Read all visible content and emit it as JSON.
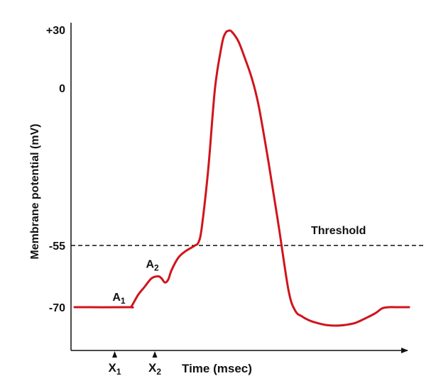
{
  "chart_data": {
    "type": "line",
    "title": "",
    "xlabel": "Time (msec)",
    "ylabel": "Membrane potential (mV)",
    "yticks": [
      "+30",
      "0",
      "-55",
      "-70"
    ],
    "ytick_values": [
      30,
      0,
      -55,
      -70
    ],
    "ylim": [
      -80,
      33
    ],
    "xlim": [
      0,
      100
    ],
    "threshold": {
      "label": "Threshold",
      "value": -55,
      "style": "dashed"
    },
    "stimuli": [
      {
        "label": "X",
        "sub": "1",
        "x": 12
      },
      {
        "label": "X",
        "sub": "2",
        "x": 24
      }
    ],
    "annotations": [
      {
        "label": "A",
        "sub": "1",
        "x": 16,
        "y": -70
      },
      {
        "label": "A",
        "sub": "2",
        "x": 26,
        "y": -62
      }
    ],
    "series": [
      {
        "color": "#d0141c",
        "x": [
          0,
          16,
          17,
          19,
          21,
          23,
          25,
          26,
          27,
          28,
          29,
          31,
          33,
          35,
          36,
          37,
          38,
          40,
          42,
          44,
          45,
          46,
          47,
          49,
          51,
          53,
          55,
          58,
          61,
          64,
          66,
          68,
          70,
          72,
          75,
          78,
          81,
          84,
          87,
          90,
          92,
          94,
          96,
          100
        ],
        "y": [
          -70,
          -70,
          -69.8,
          -67,
          -65,
          -63,
          -62.5,
          -63,
          -64,
          -63.3,
          -61,
          -58,
          -56.5,
          -55.5,
          -55,
          -54,
          -49,
          -28,
          0,
          22,
          28,
          29.5,
          29,
          24,
          15,
          5,
          -6,
          -26,
          -48,
          -66,
          -72,
          -75,
          -77,
          -78.3,
          -79.6,
          -80,
          -79.6,
          -78.5,
          -76,
          -73.2,
          -70.6,
          -70,
          -70,
          -70
        ]
      }
    ]
  },
  "colors": {
    "trace": "#d0141c",
    "axis": "#111111"
  }
}
